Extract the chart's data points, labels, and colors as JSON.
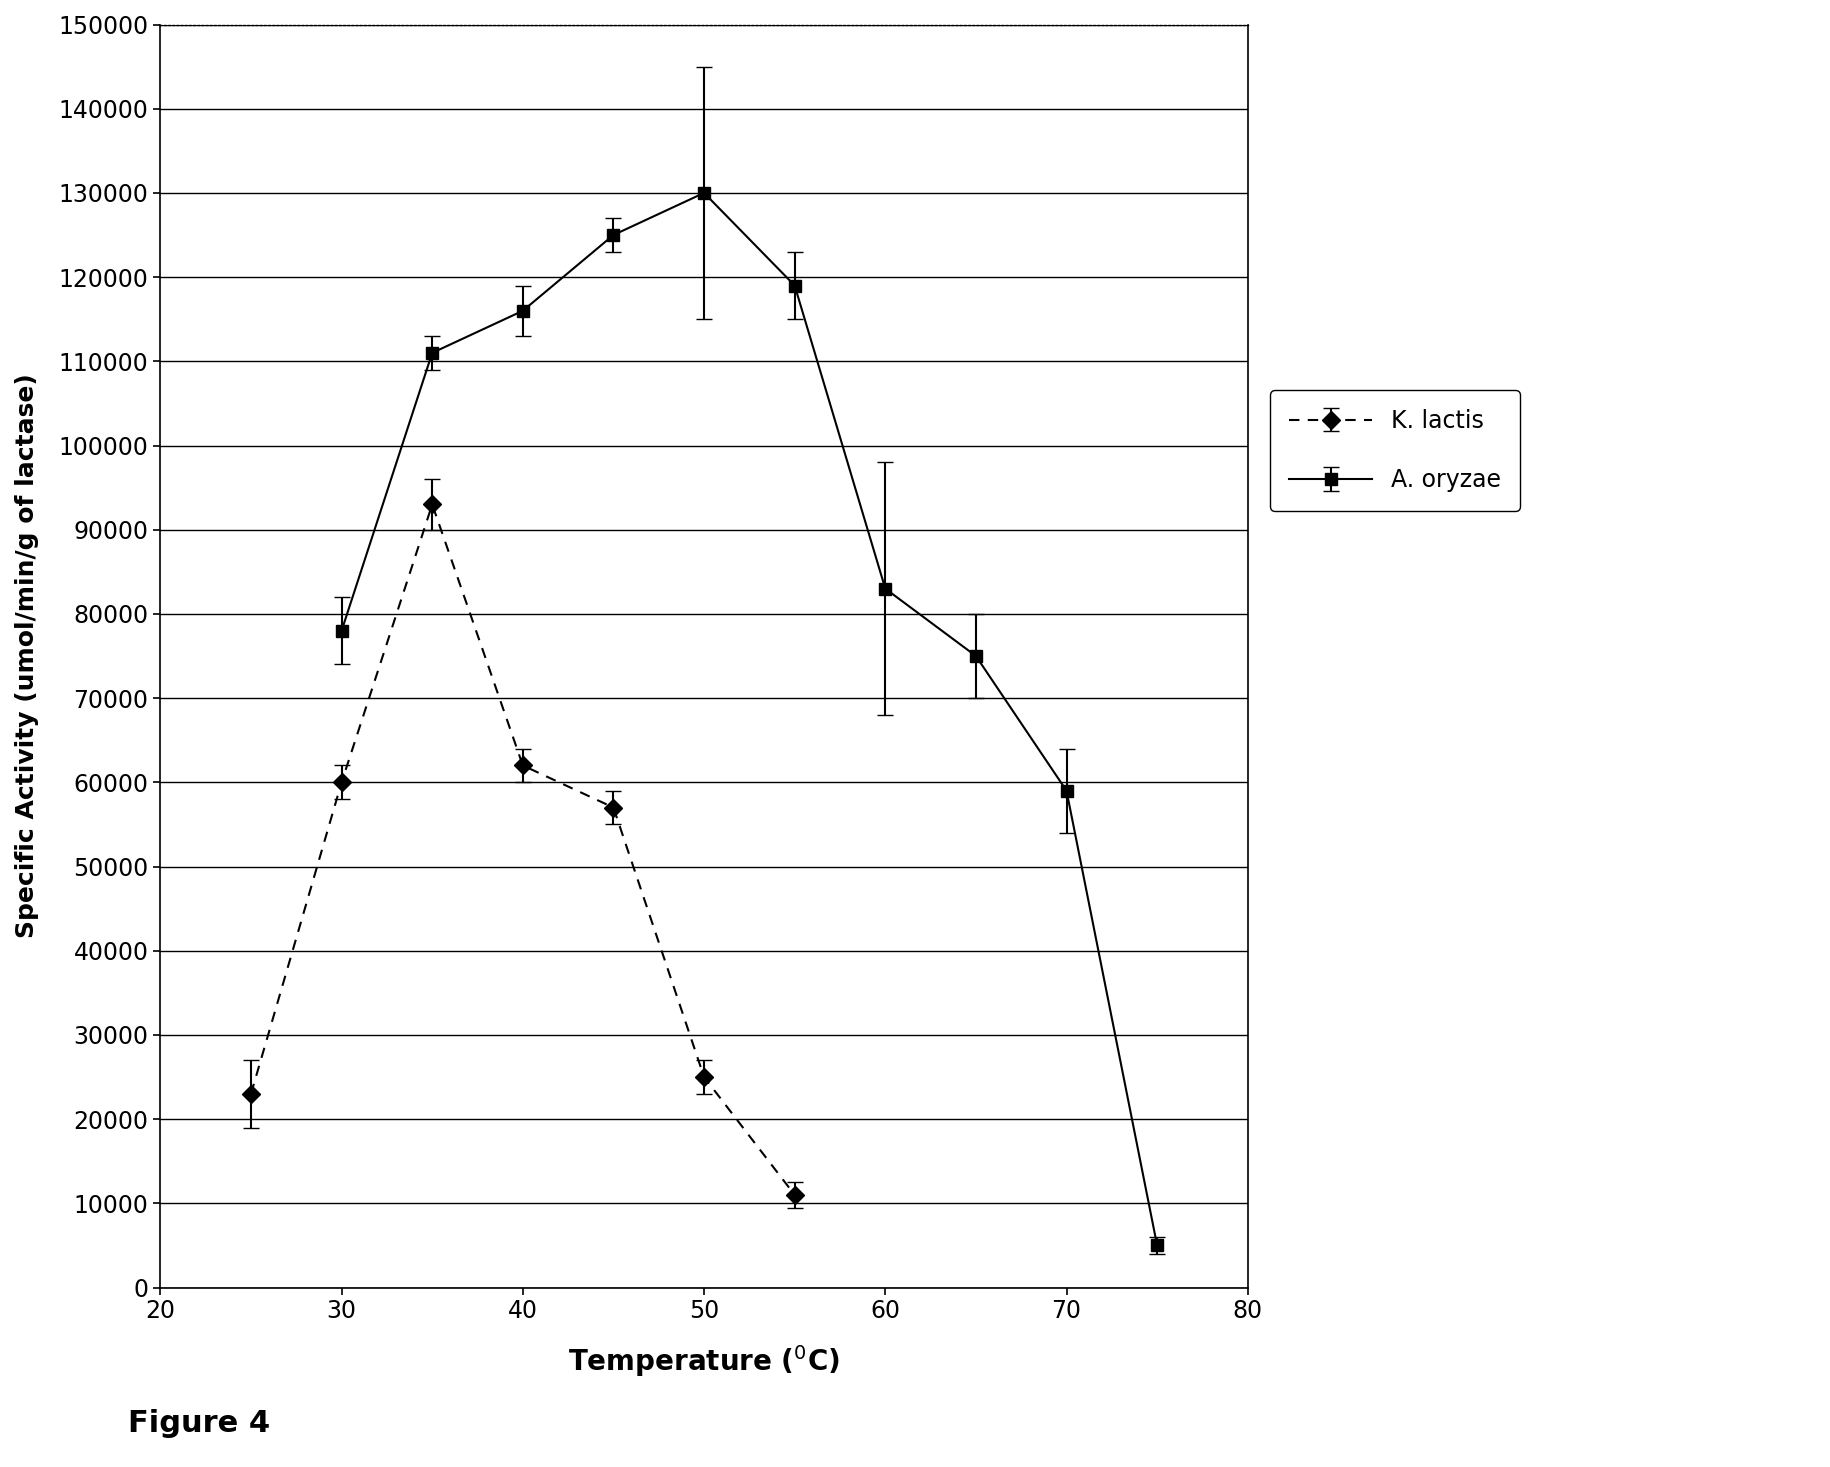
{
  "title": "",
  "xlabel": "Temperature (^0C)",
  "ylabel": "Specific Activity (umol/min/g of lactase)",
  "xlim": [
    20,
    80
  ],
  "ylim": [
    0,
    150000
  ],
  "yticks": [
    0,
    10000,
    20000,
    30000,
    40000,
    50000,
    60000,
    70000,
    80000,
    90000,
    100000,
    110000,
    120000,
    130000,
    140000,
    150000
  ],
  "xticks": [
    20,
    30,
    40,
    50,
    60,
    70,
    80
  ],
  "figure_caption": "Figure 4",
  "k_lactis": {
    "x": [
      25,
      30,
      35,
      40,
      45,
      50,
      55
    ],
    "y": [
      23000,
      60000,
      93000,
      62000,
      57000,
      25000,
      11000
    ],
    "yerr": [
      4000,
      2000,
      3000,
      2000,
      2000,
      2000,
      1500
    ],
    "label": "K. lactis",
    "color": "#000000",
    "linestyle": "dashed",
    "marker": "D",
    "markersize": 9
  },
  "a_oryzae": {
    "x": [
      30,
      35,
      40,
      45,
      50,
      55,
      60,
      65,
      70,
      75
    ],
    "y": [
      78000,
      111000,
      116000,
      125000,
      130000,
      119000,
      83000,
      75000,
      59000,
      5000
    ],
    "yerr": [
      4000,
      2000,
      3000,
      2000,
      15000,
      4000,
      15000,
      5000,
      5000,
      1000
    ],
    "label": "A. oryzae",
    "color": "#000000",
    "linestyle": "solid",
    "marker": "s",
    "markersize": 9
  },
  "background_color": "#ffffff",
  "figure_caption_fontsize": 22
}
